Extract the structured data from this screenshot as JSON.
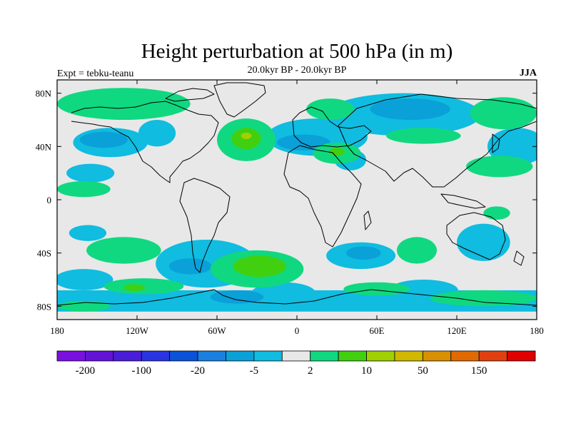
{
  "title": "Height perturbation at 500 hPa (in m)",
  "left_label": "Expt = tebku-teanu",
  "center_label": "20.0kyr BP - 20.0kyr BP",
  "right_label": "JJA",
  "map": {
    "type": "filled-contour-map",
    "projection": "cylindrical-equidistant",
    "background": "#e8e8e8",
    "lon_range": [
      -180,
      180
    ],
    "lat_range": [
      -90,
      90
    ],
    "x_ticks": [
      {
        "lon": -180,
        "label": "180"
      },
      {
        "lon": -120,
        "label": "120W"
      },
      {
        "lon": -60,
        "label": "60W"
      },
      {
        "lon": 0,
        "label": "0"
      },
      {
        "lon": 60,
        "label": "60E"
      },
      {
        "lon": 120,
        "label": "120E"
      },
      {
        "lon": 180,
        "label": "180"
      }
    ],
    "y_ticks": [
      {
        "lat": 80,
        "label": "80N"
      },
      {
        "lat": 40,
        "label": "40N"
      },
      {
        "lat": 0,
        "label": "0"
      },
      {
        "lat": -40,
        "label": "40S"
      },
      {
        "lat": -80,
        "label": "80S"
      }
    ]
  },
  "colorbar": {
    "colors": [
      "#7a10e0",
      "#6312d8",
      "#4a1ed8",
      "#2a34e0",
      "#0a52d8",
      "#1a80e0",
      "#0aa0d8",
      "#10bce0",
      "#e8e8e8",
      "#10d880",
      "#40d010",
      "#a0d000",
      "#d0b800",
      "#d89000",
      "#e06a00",
      "#e04010",
      "#e00000"
    ],
    "labels": [
      {
        "index": 1,
        "label": "-200"
      },
      {
        "index": 3,
        "label": "-100"
      },
      {
        "index": 5,
        "label": "-20"
      },
      {
        "index": 7,
        "label": "-5"
      },
      {
        "index": 9,
        "label": "2"
      },
      {
        "index": 11,
        "label": "10"
      },
      {
        "index": 13,
        "label": "50"
      },
      {
        "index": 15,
        "label": "150"
      }
    ]
  },
  "regions": [
    {
      "level": "-5",
      "color": "#10bce0",
      "shape": "band",
      "lon_range": [
        -180,
        180
      ],
      "lat_range": [
        -84,
        -68
      ]
    },
    {
      "level": "-5",
      "color": "#10bce0",
      "shape": "ellipse",
      "lon": -140,
      "lat": 43,
      "rlon": 28,
      "rlat": 11
    },
    {
      "level": "-5",
      "color": "#10bce0",
      "shape": "ellipse",
      "lon": -155,
      "lat": 20,
      "rlon": 18,
      "rlat": 7
    },
    {
      "level": "-5",
      "color": "#10bce0",
      "shape": "ellipse",
      "lon": -157,
      "lat": -25,
      "rlon": 14,
      "rlat": 6
    },
    {
      "level": "-5",
      "color": "#10bce0",
      "shape": "ellipse",
      "lon": -160,
      "lat": -60,
      "rlon": 22,
      "rlat": 8
    },
    {
      "level": "-5",
      "color": "#10bce0",
      "shape": "ellipse",
      "lon": -105,
      "lat": 50,
      "rlon": 14,
      "rlat": 10
    },
    {
      "level": "-5",
      "color": "#10bce0",
      "shape": "ellipse",
      "lon": -68,
      "lat": -48,
      "rlon": 38,
      "rlat": 18
    },
    {
      "level": "-5",
      "color": "#10bce0",
      "shape": "ellipse",
      "lon": 15,
      "lat": 47,
      "rlon": 38,
      "rlat": 14
    },
    {
      "level": "-5",
      "color": "#10bce0",
      "shape": "ellipse",
      "lon": 80,
      "lat": 64,
      "rlon": 58,
      "rlat": 16
    },
    {
      "level": "-5",
      "color": "#10bce0",
      "shape": "ellipse",
      "lon": 40,
      "lat": 30,
      "rlon": 12,
      "rlat": 8
    },
    {
      "level": "-5",
      "color": "#10bce0",
      "shape": "ellipse",
      "lon": 48,
      "lat": -42,
      "rlon": 26,
      "rlat": 10
    },
    {
      "level": "-5",
      "color": "#10bce0",
      "shape": "ellipse",
      "lon": 140,
      "lat": -32,
      "rlon": 20,
      "rlat": 14
    },
    {
      "level": "-5",
      "color": "#10bce0",
      "shape": "ellipse",
      "lon": 165,
      "lat": 40,
      "rlon": 22,
      "rlat": 14
    },
    {
      "level": "-5",
      "color": "#10bce0",
      "shape": "ellipse",
      "lon": 95,
      "lat": -68,
      "rlon": 26,
      "rlat": 8
    },
    {
      "level": "-5",
      "color": "#10bce0",
      "shape": "ellipse",
      "lon": -10,
      "lat": -70,
      "rlon": 24,
      "rlat": 8
    },
    {
      "level": "-20",
      "color": "#0aa0d8",
      "shape": "ellipse",
      "lon": -145,
      "lat": 45,
      "rlon": 18,
      "rlat": 6
    },
    {
      "level": "-20",
      "color": "#0aa0d8",
      "shape": "ellipse",
      "lon": -80,
      "lat": -50,
      "rlon": 16,
      "rlat": 6
    },
    {
      "level": "-20",
      "color": "#0aa0d8",
      "shape": "ellipse",
      "lon": 85,
      "lat": 68,
      "rlon": 30,
      "rlat": 8
    },
    {
      "level": "-20",
      "color": "#0aa0d8",
      "shape": "ellipse",
      "lon": 50,
      "lat": -40,
      "rlon": 13,
      "rlat": 5
    },
    {
      "level": "-20",
      "color": "#0aa0d8",
      "shape": "ellipse",
      "lon": -45,
      "lat": -73,
      "rlon": 20,
      "rlat": 5
    },
    {
      "level": "-20",
      "color": "#0aa0d8",
      "shape": "ellipse",
      "lon": 5,
      "lat": 43,
      "rlon": 20,
      "rlat": 6
    },
    {
      "level": "2",
      "color": "#10d880",
      "shape": "ellipse",
      "lon": -130,
      "lat": 72,
      "rlon": 50,
      "rlat": 12
    },
    {
      "level": "2",
      "color": "#10d880",
      "shape": "ellipse",
      "lon": -38,
      "lat": 45,
      "rlon": 22,
      "rlat": 16
    },
    {
      "level": "2",
      "color": "#10d880",
      "shape": "ellipse",
      "lon": 25,
      "lat": 68,
      "rlon": 18,
      "rlat": 8
    },
    {
      "level": "2",
      "color": "#10d880",
      "shape": "ellipse",
      "lon": 30,
      "lat": 35,
      "rlon": 18,
      "rlat": 8
    },
    {
      "level": "2",
      "color": "#10d880",
      "shape": "ellipse",
      "lon": 95,
      "lat": 48,
      "rlon": 28,
      "rlat": 6
    },
    {
      "level": "2",
      "color": "#10d880",
      "shape": "ellipse",
      "lon": 155,
      "lat": 65,
      "rlon": 25,
      "rlat": 12
    },
    {
      "level": "2",
      "color": "#10d880",
      "shape": "ellipse",
      "lon": 152,
      "lat": 25,
      "rlon": 25,
      "rlat": 8
    },
    {
      "level": "2",
      "color": "#10d880",
      "shape": "ellipse",
      "lon": -160,
      "lat": 8,
      "rlon": 20,
      "rlat": 6
    },
    {
      "level": "2",
      "color": "#10d880",
      "shape": "ellipse",
      "lon": -130,
      "lat": -38,
      "rlon": 28,
      "rlat": 10
    },
    {
      "level": "2",
      "color": "#10d880",
      "shape": "ellipse",
      "lon": -115,
      "lat": -65,
      "rlon": 30,
      "rlat": 6
    },
    {
      "level": "2",
      "color": "#10d880",
      "shape": "ellipse",
      "lon": -30,
      "lat": -52,
      "rlon": 35,
      "rlat": 14
    },
    {
      "level": "2",
      "color": "#10d880",
      "shape": "ellipse",
      "lon": 90,
      "lat": -38,
      "rlon": 15,
      "rlat": 10
    },
    {
      "level": "2",
      "color": "#10d880",
      "shape": "ellipse",
      "lon": 150,
      "lat": -10,
      "rlon": 10,
      "rlat": 5
    },
    {
      "level": "2",
      "color": "#10d880",
      "shape": "ellipse",
      "lon": 140,
      "lat": -74,
      "rlon": 40,
      "rlat": 6
    },
    {
      "level": "2",
      "color": "#10d880",
      "shape": "ellipse",
      "lon": -160,
      "lat": -80,
      "rlon": 20,
      "rlat": 4
    },
    {
      "level": "2",
      "color": "#10d880",
      "shape": "ellipse",
      "lon": 60,
      "lat": -67,
      "rlon": 25,
      "rlat": 5
    },
    {
      "level": "10",
      "color": "#40d010",
      "shape": "ellipse",
      "lon": -38,
      "lat": 46,
      "rlon": 11,
      "rlat": 8
    },
    {
      "level": "10",
      "color": "#40d010",
      "shape": "ellipse",
      "lon": -28,
      "lat": -50,
      "rlon": 20,
      "rlat": 8
    },
    {
      "level": "10",
      "color": "#40d010",
      "shape": "ellipse",
      "lon": 30,
      "lat": 36,
      "rlon": 6,
      "rlat": 3
    },
    {
      "level": "10",
      "color": "#40d010",
      "shape": "ellipse",
      "lon": -122,
      "lat": -66,
      "rlon": 8,
      "rlat": 2.5
    },
    {
      "level": "50",
      "color": "#a0d000",
      "shape": "ellipse",
      "lon": -38,
      "lat": 48,
      "rlon": 4,
      "rlat": 2.5
    }
  ]
}
